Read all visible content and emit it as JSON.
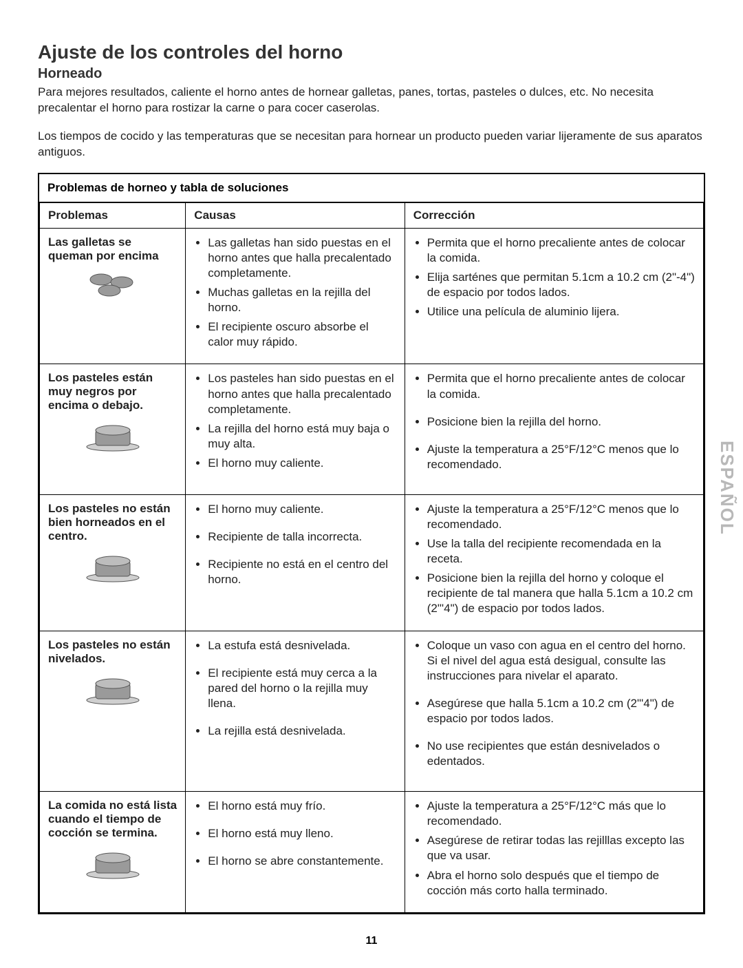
{
  "title": "Ajuste de los controles del horno",
  "subtitle": "Horneado",
  "intro1": "Para mejores resultados, caliente el horno antes de hornear galletas, panes, tortas, pasteles o dulces, etc.  No necesita precalentar el horno para rostizar la carne o para cocer caserolas.",
  "intro2": "Los tiempos de cocido y las temperaturas que se necesitan para hornear un producto pueden variar lijeramente de sus aparatos antiguos.",
  "table": {
    "caption": "Problemas de horneo y tabla de soluciones",
    "headers": {
      "c1": "Problemas",
      "c2": "Causas",
      "c3": "Corrección"
    },
    "rows": [
      {
        "problem": "Las galletas se queman por encima",
        "icon": "cookies",
        "causes": [
          "Las galletas han sido puestas en el horno antes que halla precalentado completamente.",
          "Muchas galletas en la rejilla del horno.",
          "El recipiente oscuro absorbe el calor muy rápido."
        ],
        "fixes": [
          "Permita que el horno precaliente antes de colocar la comida.",
          "Elija sarténes que permitan 5.1cm a 10.2 cm (2\"-4\") de espacio por todos lados.",
          "Utilice una película de aluminio lijera."
        ]
      },
      {
        "problem": "Los pasteles están muy negros por encima o debajo.",
        "icon": "cake",
        "causes": [
          "Los pasteles han sido puestas en el horno antes que halla precalentado completamente.",
          "La rejilla del horno está muy baja o muy alta.",
          "El horno muy caliente."
        ],
        "fixes": [
          "Permita que el horno precaliente antes de colocar la comida.",
          "Posicione bien la rejilla del horno.",
          "Ajuste la temperatura a 25°F/12°C menos que lo recomendado."
        ]
      },
      {
        "problem": "Los pasteles no están bien horneados en el centro.",
        "icon": "cake",
        "causes": [
          "El horno muy caliente.",
          "Recipiente de talla incorrecta.",
          "Recipiente no está en el centro del horno."
        ],
        "fixes": [
          "Ajuste la temperatura a 25°F/12°C menos que lo recomendado.",
          "Use la talla del recipiente recomendada en la receta.",
          "Posicione bien la rejilla del horno y coloque el recipiente de tal manera que halla  5.1cm a 10.2 cm (2\"'4\") de espacio por todos lados."
        ]
      },
      {
        "problem": "Los pasteles no están nivelados.",
        "icon": "cake",
        "causes": [
          "La estufa está desnivelada.",
          "El recipiente está muy cerca a la pared del horno o la rejilla muy llena.",
          "La rejilla está desnivelada."
        ],
        "fixes": [
          "Coloque un vaso con agua en el centro del horno. Si el nivel del agua está desigual, consulte las instrucciones para nivelar el aparato.",
          "Asegúrese que halla  5.1cm a 10.2 cm (2\"'4\") de espacio por todos lados.",
          "No use recipientes que están desnivelados o edentados."
        ]
      },
      {
        "problem": "La comida no está lista cuando el tiempo de cocción se termina.",
        "icon": "cake",
        "causes": [
          "El horno está muy frío.",
          "El horno está muy lleno.",
          "El horno se abre constantemente."
        ],
        "fixes": [
          "Ajuste la temperatura a 25°F/12°C más que lo recomendado.",
          "Asegúrese de retirar todas las rejilllas excepto las que va usar.",
          "Abra el horno solo después que el tiempo de cocción más corto halla terminado."
        ]
      }
    ]
  },
  "sideTab": "ESPAÑOL",
  "pageNumber": "11",
  "colors": {
    "text": "#222222",
    "border": "#000000",
    "sideTab": "#b8b8b8",
    "iconFill": "#9a9a9a",
    "iconStroke": "#555555"
  }
}
